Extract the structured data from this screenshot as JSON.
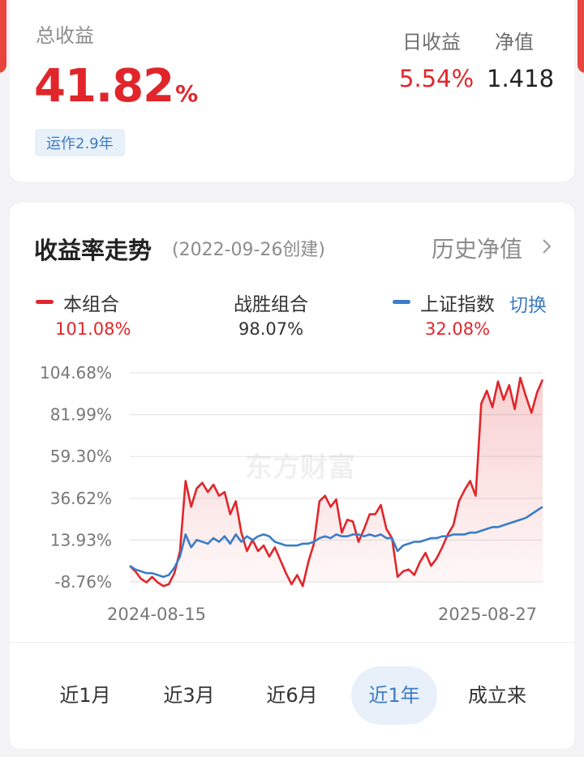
{
  "summary": {
    "total_label": "总收益",
    "total_value": "41.82",
    "total_unit": "%",
    "run_tag": "运作2.9年",
    "daily_label": "日收益",
    "daily_value": "5.54%",
    "nav_label": "净值",
    "nav_value": "1.418"
  },
  "trend": {
    "title": "收益率走势",
    "created": "(2022-09-26创建)",
    "history_link": "历史净值",
    "switch_label": "切换",
    "legend": [
      {
        "label": "本组合",
        "value": "101.08%",
        "color": "#e0262b"
      },
      {
        "label": "战胜组合",
        "value": "98.07%",
        "color": "#333333"
      },
      {
        "label": "上证指数",
        "value": "32.08%",
        "color": "#3a7cc8"
      }
    ],
    "watermark": "东方财富"
  },
  "chart_data": {
    "type": "line",
    "y_ticks": [
      "104.68%",
      "81.99%",
      "59.30%",
      "36.62%",
      "13.93%",
      "-8.76%"
    ],
    "ylim": [
      -8.76,
      104.68
    ],
    "x_start_label": "2024-08-15",
    "x_end_label": "2025-08-27",
    "grid": true,
    "series": [
      {
        "name": "本组合",
        "color": "#e0262b",
        "values": [
          0,
          -3,
          -7,
          -9,
          -6,
          -9,
          -11,
          -10,
          -4,
          8,
          46,
          32,
          42,
          45,
          40,
          44,
          38,
          40,
          28,
          35,
          18,
          8,
          14,
          8,
          11,
          5,
          10,
          3,
          -4,
          -10,
          -5,
          -11,
          2,
          12,
          35,
          38,
          32,
          36,
          18,
          25,
          24,
          13,
          20,
          28,
          28,
          33,
          20,
          15,
          -6,
          -3,
          -2,
          -5,
          2,
          7,
          0,
          4,
          10,
          17,
          22,
          35,
          41,
          46,
          38,
          88,
          95,
          86,
          100,
          90,
          98,
          85,
          102,
          92,
          83,
          94,
          101
        ]
      },
      {
        "name": "上证指数",
        "color": "#3a7cc8",
        "values": [
          0,
          -2,
          -3,
          -4,
          -4,
          -5,
          -6,
          -5,
          -1,
          5,
          17,
          10,
          14,
          13,
          12,
          15,
          13,
          16,
          12,
          17,
          13,
          16,
          14,
          16,
          17,
          16,
          13,
          12,
          11,
          11,
          11,
          12,
          12,
          13,
          15,
          16,
          15,
          17,
          16,
          16,
          17,
          17,
          16,
          17,
          16,
          17,
          15,
          15,
          8,
          11,
          12,
          13,
          13,
          14,
          15,
          15,
          16,
          16,
          17,
          17,
          17,
          18,
          18,
          19,
          20,
          21,
          21,
          22,
          23,
          24,
          25,
          26,
          28,
          30,
          32
        ]
      }
    ]
  },
  "tabs": [
    {
      "label": "近1月",
      "active": false
    },
    {
      "label": "近3月",
      "active": false
    },
    {
      "label": "近6月",
      "active": false
    },
    {
      "label": "近1年",
      "active": true
    },
    {
      "label": "成立来",
      "active": false
    }
  ]
}
